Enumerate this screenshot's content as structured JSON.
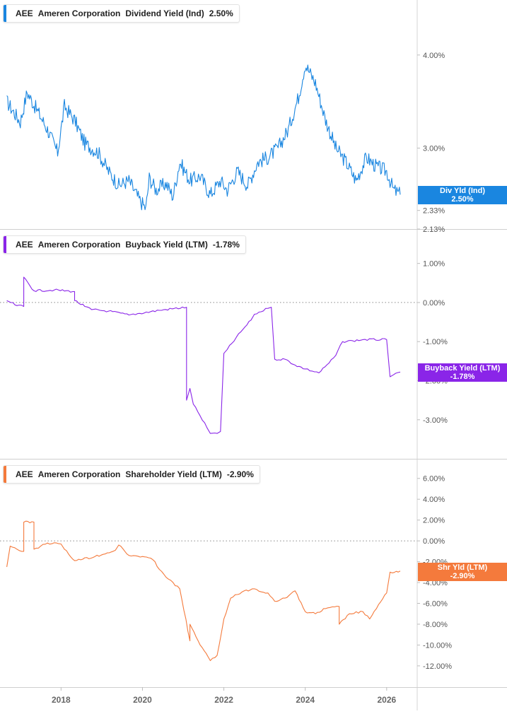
{
  "chart_data": [
    {
      "type": "line",
      "ticker": "AEE",
      "company": "Ameren Corporation",
      "metric": "Dividend Yield (Ind)",
      "current_value": "2.50%",
      "badge": {
        "line1": "Div Yld (Ind)",
        "line2": "2.50%"
      },
      "color": "#1a86e0",
      "y_ticks": [
        {
          "value": 4.0,
          "label": "4.00%"
        },
        {
          "value": 3.0,
          "label": "3.00%"
        },
        {
          "value": 2.33,
          "label": "2.33%"
        },
        {
          "value": 2.13,
          "label": "2.13%"
        }
      ],
      "ylim": [
        2.13,
        4.5
      ],
      "zero_line": false,
      "x": [
        "2016-09",
        "2017-01",
        "2017-03",
        "2017-06",
        "2017-09",
        "2017-12",
        "2018-02",
        "2018-05",
        "2018-08",
        "2018-12",
        "2019-03",
        "2019-06",
        "2019-09",
        "2019-12",
        "2020-02",
        "2020-03",
        "2020-05",
        "2020-08",
        "2020-10",
        "2020-12",
        "2021-03",
        "2021-06",
        "2021-09",
        "2021-12",
        "2022-02",
        "2022-05",
        "2022-08",
        "2022-11",
        "2023-02",
        "2023-05",
        "2023-08",
        "2023-11",
        "2024-01",
        "2024-04",
        "2024-07",
        "2024-10",
        "2025-01",
        "2025-04",
        "2025-07",
        "2025-10",
        "2026-01",
        "2026-03",
        "2026-05"
      ],
      "values": [
        3.5,
        3.28,
        3.6,
        3.4,
        3.2,
        2.95,
        3.45,
        3.3,
        3.05,
        2.95,
        2.75,
        2.6,
        2.65,
        2.45,
        2.35,
        2.68,
        2.55,
        2.62,
        2.48,
        2.85,
        2.65,
        2.7,
        2.5,
        2.65,
        2.55,
        2.75,
        2.6,
        2.85,
        2.9,
        3.0,
        3.2,
        3.55,
        3.9,
        3.7,
        3.3,
        3.0,
        2.85,
        2.65,
        2.9,
        2.8,
        2.75,
        2.55,
        2.5
      ]
    },
    {
      "type": "line",
      "ticker": "AEE",
      "company": "Ameren Corporation",
      "metric": "Buyback Yield (LTM)",
      "current_value": "-1.78%",
      "badge": {
        "line1": "Buyback Yield (LTM)",
        "line2": "-1.78%"
      },
      "color": "#8a25e8",
      "y_ticks": [
        {
          "value": 1.0,
          "label": "1.00%"
        },
        {
          "value": 0.0,
          "label": "0.00%"
        },
        {
          "value": -1.0,
          "label": "-1.00%"
        },
        {
          "value": -2.0,
          "label": "-2.00%"
        },
        {
          "value": -3.0,
          "label": "-3.00%"
        }
      ],
      "ylim": [
        -3.8,
        1.5
      ],
      "zero_line": true,
      "x": [
        "2016-09",
        "2016-12",
        "2017-02",
        "2017-02",
        "2017-05",
        "2017-11",
        "2018-05",
        "2018-05",
        "2018-08",
        "2018-10",
        "2019-03",
        "2019-09",
        "2020-06",
        "2021-02",
        "2021-02",
        "2021-03",
        "2021-04",
        "2021-06",
        "2021-08",
        "2021-09",
        "2021-11",
        "2021-12",
        "2022-01",
        "2022-02",
        "2022-06",
        "2022-09",
        "2022-10",
        "2023-02",
        "2023-03",
        "2023-04",
        "2023-07",
        "2023-10",
        "2024-01",
        "2024-05",
        "2024-08",
        "2024-10",
        "2024-12",
        "2025-03",
        "2025-06",
        "2026-01",
        "2026-02",
        "2026-03",
        "2026-05"
      ],
      "values": [
        0.05,
        -0.08,
        -0.1,
        0.65,
        0.3,
        0.32,
        0.28,
        0.05,
        -0.1,
        -0.18,
        -0.22,
        -0.32,
        -0.2,
        -0.12,
        -2.5,
        -2.2,
        -2.6,
        -2.9,
        -3.2,
        -3.35,
        -3.35,
        -3.3,
        -1.3,
        -1.2,
        -0.75,
        -0.45,
        -0.3,
        -0.15,
        -0.12,
        -1.45,
        -1.45,
        -1.6,
        -1.7,
        -1.8,
        -1.55,
        -1.35,
        -1.0,
        -0.98,
        -0.95,
        -0.95,
        -1.9,
        -1.85,
        -1.78
      ]
    },
    {
      "type": "line",
      "ticker": "AEE",
      "company": "Ameren Corporation",
      "metric": "Shareholder Yield (LTM)",
      "current_value": "-2.90%",
      "badge": {
        "line1": "Shr Yld (LTM)",
        "line2": "-2.90%"
      },
      "color": "#f47a3c",
      "y_ticks": [
        {
          "value": 6.0,
          "label": "6.00%"
        },
        {
          "value": 4.0,
          "label": "4.00%"
        },
        {
          "value": 2.0,
          "label": "2.00%"
        },
        {
          "value": 0.0,
          "label": "0.00%"
        },
        {
          "value": -2.0,
          "label": "-2.00%"
        },
        {
          "value": -4.0,
          "label": "-4.00%"
        },
        {
          "value": -6.0,
          "label": "-6.00%"
        },
        {
          "value": -8.0,
          "label": "-8.00%"
        },
        {
          "value": -10.0,
          "label": "-10.00%"
        },
        {
          "value": -12.0,
          "label": "-12.00%"
        }
      ],
      "ylim": [
        -13.5,
        7.0
      ],
      "zero_line": true,
      "x": [
        "2016-09",
        "2016-10",
        "2016-12",
        "2017-02",
        "2017-02",
        "2017-05",
        "2017-05",
        "2017-09",
        "2018-01",
        "2018-02",
        "2018-05",
        "2018-11",
        "2019-05",
        "2019-06",
        "2019-09",
        "2020-01",
        "2020-04",
        "2020-08",
        "2020-12",
        "2021-03",
        "2021-03",
        "2021-06",
        "2021-09",
        "2021-11",
        "2022-01",
        "2022-03",
        "2022-07",
        "2022-10",
        "2023-02",
        "2023-04",
        "2023-07",
        "2023-10",
        "2024-01",
        "2024-04",
        "2024-07",
        "2024-11",
        "2024-11",
        "2025-02",
        "2025-06",
        "2025-08",
        "2025-10",
        "2026-01",
        "2026-02",
        "2026-05"
      ],
      "values": [
        -2.5,
        -0.5,
        -0.8,
        -1.0,
        1.8,
        1.8,
        -0.8,
        -0.2,
        -0.3,
        -0.8,
        -1.9,
        -1.5,
        -0.9,
        -0.4,
        -1.4,
        -1.5,
        -1.8,
        -3.5,
        -4.6,
        -9.6,
        -8.0,
        -10.0,
        -11.5,
        -11.0,
        -7.5,
        -5.5,
        -4.8,
        -4.6,
        -5.0,
        -5.8,
        -5.5,
        -4.8,
        -6.8,
        -7.0,
        -6.5,
        -6.3,
        -8.0,
        -7.0,
        -6.8,
        -7.5,
        -6.5,
        -5.0,
        -3.0,
        -2.9
      ]
    }
  ],
  "x_axis": {
    "ticks": [
      {
        "value": "2018-01",
        "label": "2018"
      },
      {
        "value": "2020-01",
        "label": "2020"
      },
      {
        "value": "2022-01",
        "label": "2022"
      },
      {
        "value": "2024-01",
        "label": "2024"
      },
      {
        "value": "2026-01",
        "label": "2026"
      }
    ],
    "xlim": [
      "2016-07",
      "2026-10"
    ]
  }
}
